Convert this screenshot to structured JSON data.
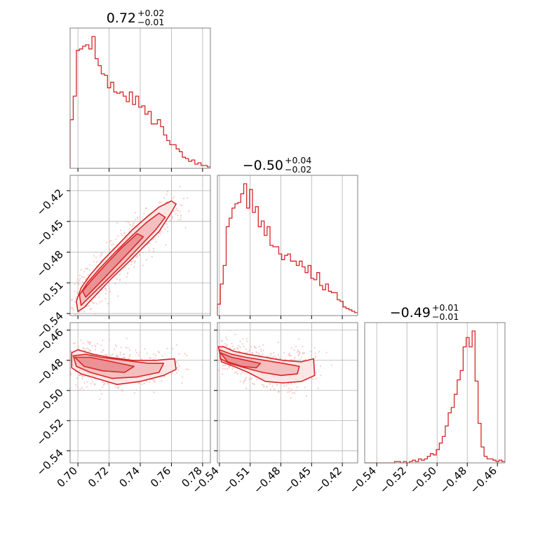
{
  "chart_data": {
    "type": "corner",
    "color": "#d62728",
    "grid": true,
    "parameters": [
      {
        "title": "0.72",
        "err_plus": "+0.02",
        "err_minus": "−0.01",
        "range": [
          0.695,
          0.785
        ],
        "ticks": [
          0.7,
          0.72,
          0.74,
          0.76,
          0.78
        ],
        "tick_labels": [
          "0.70",
          "0.72",
          "0.74",
          "0.76",
          "0.78"
        ],
        "hist_edges": [
          0.695,
          0.785
        ],
        "hist": [
          0.35,
          0.52,
          0.85,
          0.86,
          0.88,
          0.89,
          0.86,
          0.95,
          0.79,
          0.74,
          0.68,
          0.67,
          0.58,
          0.62,
          0.55,
          0.54,
          0.55,
          0.52,
          0.48,
          0.55,
          0.46,
          0.52,
          0.44,
          0.45,
          0.39,
          0.41,
          0.32,
          0.32,
          0.35,
          0.3,
          0.24,
          0.2,
          0.17,
          0.17,
          0.14,
          0.12,
          0.08,
          0.07,
          0.05,
          0.06,
          0.03,
          0.04,
          0.02,
          0.02,
          0.01
        ]
      },
      {
        "title": "−0.50",
        "err_plus": "+0.04",
        "err_minus": "−0.02",
        "range": [
          -0.542,
          -0.405
        ],
        "ticks": [
          -0.54,
          -0.51,
          -0.48,
          -0.45,
          -0.42
        ],
        "tick_labels": [
          "−0.54",
          "−0.51",
          "−0.48",
          "−0.45",
          "−0.42"
        ],
        "hist_edges": [
          -0.542,
          -0.405
        ],
        "hist": [
          0.08,
          0.22,
          0.35,
          0.62,
          0.68,
          0.75,
          0.78,
          0.79,
          0.85,
          0.92,
          0.75,
          0.88,
          0.72,
          0.76,
          0.62,
          0.66,
          0.56,
          0.62,
          0.49,
          0.48,
          0.48,
          0.43,
          0.39,
          0.42,
          0.43,
          0.38,
          0.38,
          0.35,
          0.38,
          0.34,
          0.3,
          0.35,
          0.26,
          0.25,
          0.3,
          0.21,
          0.18,
          0.22,
          0.17,
          0.16,
          0.16,
          0.11,
          0.1,
          0.06,
          0.05,
          0.04,
          0.03,
          0.02
        ]
      },
      {
        "title": "−0.49",
        "err_plus": "+0.01",
        "err_minus": "−0.01",
        "range": [
          -0.548,
          -0.455
        ],
        "ticks": [
          -0.54,
          -0.52,
          -0.5,
          -0.48,
          -0.46
        ],
        "tick_labels": [
          "−0.54",
          "−0.52",
          "−0.50",
          "−0.48",
          "−0.46"
        ],
        "hist_edges": [
          -0.548,
          -0.455
        ],
        "hist": [
          0.0,
          0.0,
          0.0,
          0.0,
          0.0,
          0.0,
          0.0,
          0.0,
          0.0,
          0.0,
          0.01,
          0.01,
          0.0,
          0.01,
          0.0,
          0.01,
          0.02,
          0.01,
          0.03,
          0.02,
          0.03,
          0.05,
          0.07,
          0.06,
          0.1,
          0.15,
          0.2,
          0.28,
          0.38,
          0.42,
          0.52,
          0.63,
          0.7,
          0.88,
          0.95,
          0.88,
          1.0,
          0.62,
          0.3,
          0.12,
          0.05,
          0.03,
          0.03,
          0.02,
          0.01,
          0.02,
          0.01
        ]
      }
    ],
    "contours": [
      {
        "x_param": 0,
        "y_param": 1,
        "levels": [
          [
            [
              0.7,
              -0.538
            ],
            [
              0.704,
              -0.534
            ],
            [
              0.712,
              -0.521
            ],
            [
              0.722,
              -0.505
            ],
            [
              0.733,
              -0.489
            ],
            [
              0.744,
              -0.472
            ],
            [
              0.752,
              -0.46
            ],
            [
              0.76,
              -0.441
            ],
            [
              0.763,
              -0.433
            ],
            [
              0.76,
              -0.43
            ],
            [
              0.752,
              -0.436
            ],
            [
              0.744,
              -0.446
            ],
            [
              0.735,
              -0.458
            ],
            [
              0.725,
              -0.474
            ],
            [
              0.716,
              -0.488
            ],
            [
              0.708,
              -0.502
            ],
            [
              0.702,
              -0.515
            ],
            [
              0.699,
              -0.528
            ]
          ],
          [
            [
              0.702,
              -0.532
            ],
            [
              0.71,
              -0.52
            ],
            [
              0.72,
              -0.505
            ],
            [
              0.73,
              -0.49
            ],
            [
              0.74,
              -0.474
            ],
            [
              0.75,
              -0.458
            ],
            [
              0.756,
              -0.446
            ],
            [
              0.752,
              -0.442
            ],
            [
              0.744,
              -0.451
            ],
            [
              0.734,
              -0.465
            ],
            [
              0.724,
              -0.48
            ],
            [
              0.714,
              -0.496
            ],
            [
              0.706,
              -0.51
            ],
            [
              0.701,
              -0.522
            ]
          ],
          [
            [
              0.705,
              -0.524
            ],
            [
              0.714,
              -0.51
            ],
            [
              0.724,
              -0.494
            ],
            [
              0.734,
              -0.478
            ],
            [
              0.742,
              -0.465
            ],
            [
              0.738,
              -0.462
            ],
            [
              0.728,
              -0.476
            ],
            [
              0.718,
              -0.492
            ],
            [
              0.709,
              -0.507
            ],
            [
              0.703,
              -0.518
            ]
          ]
        ]
      },
      {
        "x_param": 0,
        "y_param": 2,
        "levels": [
          [
            [
              0.696,
              -0.475
            ],
            [
              0.7,
              -0.473
            ],
            [
              0.71,
              -0.476
            ],
            [
              0.72,
              -0.478
            ],
            [
              0.735,
              -0.48
            ],
            [
              0.75,
              -0.48
            ],
            [
              0.762,
              -0.479
            ],
            [
              0.763,
              -0.486
            ],
            [
              0.755,
              -0.49
            ],
            [
              0.74,
              -0.494
            ],
            [
              0.725,
              -0.496
            ],
            [
              0.712,
              -0.492
            ],
            [
              0.702,
              -0.489
            ],
            [
              0.696,
              -0.485
            ]
          ],
          [
            [
              0.697,
              -0.477
            ],
            [
              0.705,
              -0.476
            ],
            [
              0.715,
              -0.478
            ],
            [
              0.73,
              -0.48
            ],
            [
              0.745,
              -0.482
            ],
            [
              0.755,
              -0.482
            ],
            [
              0.752,
              -0.488
            ],
            [
              0.738,
              -0.491
            ],
            [
              0.722,
              -0.492
            ],
            [
              0.708,
              -0.488
            ],
            [
              0.699,
              -0.484
            ]
          ],
          [
            [
              0.698,
              -0.478
            ],
            [
              0.708,
              -0.478
            ],
            [
              0.722,
              -0.481
            ],
            [
              0.736,
              -0.484
            ],
            [
              0.73,
              -0.488
            ],
            [
              0.716,
              -0.487
            ],
            [
              0.704,
              -0.484
            ]
          ]
        ]
      },
      {
        "x_param": 1,
        "y_param": 2,
        "levels": [
          [
            [
              -0.541,
              -0.471
            ],
            [
              -0.536,
              -0.471
            ],
            [
              -0.526,
              -0.474
            ],
            [
              -0.512,
              -0.476
            ],
            [
              -0.495,
              -0.478
            ],
            [
              -0.478,
              -0.48
            ],
            [
              -0.46,
              -0.481
            ],
            [
              -0.448,
              -0.479
            ],
            [
              -0.447,
              -0.49
            ],
            [
              -0.46,
              -0.494
            ],
            [
              -0.478,
              -0.495
            ],
            [
              -0.495,
              -0.494
            ],
            [
              -0.512,
              -0.488
            ],
            [
              -0.526,
              -0.484
            ],
            [
              -0.538,
              -0.481
            ]
          ],
          [
            [
              -0.54,
              -0.473
            ],
            [
              -0.528,
              -0.476
            ],
            [
              -0.514,
              -0.478
            ],
            [
              -0.496,
              -0.48
            ],
            [
              -0.478,
              -0.482
            ],
            [
              -0.462,
              -0.484
            ],
            [
              -0.464,
              -0.489
            ],
            [
              -0.48,
              -0.49
            ],
            [
              -0.498,
              -0.488
            ],
            [
              -0.515,
              -0.485
            ],
            [
              -0.53,
              -0.482
            ],
            [
              -0.539,
              -0.479
            ]
          ],
          [
            [
              -0.539,
              -0.475
            ],
            [
              -0.528,
              -0.478
            ],
            [
              -0.514,
              -0.48
            ],
            [
              -0.5,
              -0.482
            ],
            [
              -0.504,
              -0.485
            ],
            [
              -0.518,
              -0.484
            ],
            [
              -0.532,
              -0.481
            ]
          ]
        ]
      }
    ]
  }
}
